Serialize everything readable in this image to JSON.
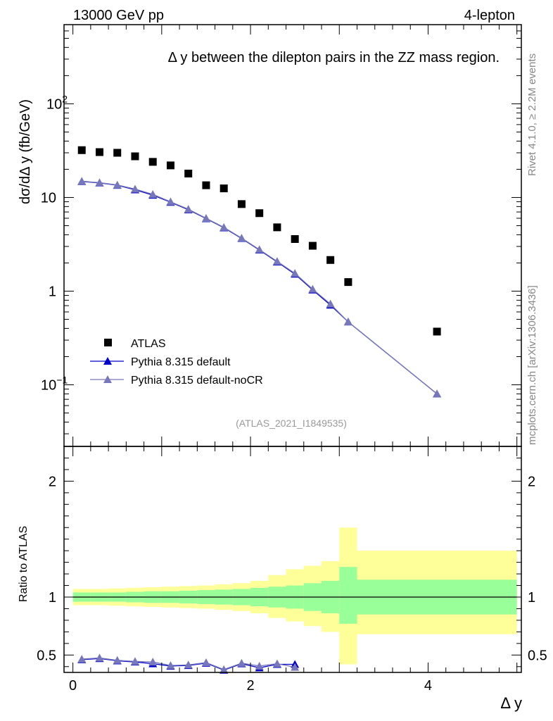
{
  "header": {
    "left": "13000 GeV pp",
    "right": "4-lepton"
  },
  "side_labels": {
    "rivet": "Rivet 4.1.0, ≥ 2.2M events",
    "mcplots": "mcplots.cern.ch [arXiv:1306.3436]"
  },
  "chart_data": [
    {
      "type": "scatter",
      "title": "Δ y between the dilepton pairs in the ZZ mass region.",
      "ylabel": "dσ/dΔ y (fb/GeV)",
      "xlabel": "",
      "yscale": "log",
      "xlim": [
        -0.1,
        5.05
      ],
      "ylim": [
        0.022,
        700
      ],
      "yticks": [
        {
          "value": 0.1,
          "base": "10",
          "exp": "−1"
        },
        {
          "value": 1,
          "base": "1",
          "exp": ""
        },
        {
          "value": 10,
          "base": "10",
          "exp": ""
        },
        {
          "value": 100,
          "base": "10",
          "exp": "2"
        }
      ],
      "watermark": "(ATLAS_2021_I1849535)",
      "legend": {
        "placement": "bottom-left",
        "entries": [
          "ATLAS",
          "Pythia 8.315 default",
          "Pythia 8.315 default-noCR"
        ]
      },
      "series": [
        {
          "name": "ATLAS",
          "color": "#000000",
          "marker": "square",
          "x": [
            0.1,
            0.3,
            0.5,
            0.7,
            0.9,
            1.1,
            1.3,
            1.5,
            1.7,
            1.9,
            2.1,
            2.3,
            2.5,
            2.7,
            2.9,
            3.1,
            4.1
          ],
          "values": [
            32.0,
            30.5,
            30.0,
            27.5,
            24.0,
            22.0,
            18.0,
            13.5,
            12.5,
            8.5,
            6.8,
            4.8,
            3.6,
            3.05,
            2.15,
            1.25,
            0.37
          ]
        },
        {
          "name": "Pythia 8.315 default",
          "color": "#0000cc",
          "marker": "triangle",
          "x": [
            0.1,
            0.3,
            0.5,
            0.7,
            0.9,
            1.1,
            1.3,
            1.5,
            1.7,
            1.9,
            2.1,
            2.3,
            2.5,
            2.7,
            2.9,
            3.1,
            4.1
          ],
          "values": [
            14.8,
            14.3,
            13.5,
            12.1,
            10.6,
            8.9,
            7.4,
            5.95,
            4.75,
            3.65,
            2.75,
            2.05,
            1.52,
            1.03,
            0.71,
            0.47,
            0.08
          ]
        },
        {
          "name": "Pythia 8.315 default-noCR",
          "color": "#7777bb",
          "marker": "triangle",
          "x": [
            0.1,
            0.3,
            0.5,
            0.7,
            0.9,
            1.1,
            1.3,
            1.5,
            1.7,
            1.9,
            2.1,
            2.3,
            2.5,
            2.7,
            2.9,
            3.1,
            4.1
          ],
          "values": [
            14.9,
            14.4,
            13.6,
            12.3,
            10.8,
            9.0,
            7.5,
            6.0,
            4.8,
            3.68,
            2.78,
            2.08,
            1.55,
            1.05,
            0.73,
            0.47,
            0.08
          ]
        }
      ]
    },
    {
      "type": "line",
      "title": "",
      "ylabel": "Ratio to ATLAS",
      "xlabel": "Δ y",
      "ylim": [
        0.35,
        2.3
      ],
      "xlim": [
        -0.1,
        5.05
      ],
      "yticks": [
        "0.5",
        "1",
        "2"
      ],
      "xticks": [
        "0",
        "2",
        "4"
      ],
      "bands": {
        "edges": [
          0.0,
          0.2,
          0.4,
          0.6,
          0.8,
          1.0,
          1.2,
          1.4,
          1.6,
          1.8,
          2.0,
          2.2,
          2.4,
          2.6,
          2.8,
          3.0,
          3.2,
          5.0
        ],
        "stat_low": [
          0.96,
          0.96,
          0.96,
          0.955,
          0.95,
          0.95,
          0.945,
          0.94,
          0.935,
          0.93,
          0.92,
          0.91,
          0.9,
          0.88,
          0.86,
          0.77,
          0.85
        ],
        "stat_high": [
          1.04,
          1.04,
          1.04,
          1.045,
          1.05,
          1.05,
          1.055,
          1.06,
          1.065,
          1.07,
          1.08,
          1.09,
          1.1,
          1.12,
          1.14,
          1.26,
          1.15
        ],
        "total_low": [
          0.93,
          0.93,
          0.925,
          0.92,
          0.915,
          0.91,
          0.905,
          0.9,
          0.89,
          0.88,
          0.86,
          0.82,
          0.79,
          0.75,
          0.7,
          0.42,
          0.68
        ],
        "total_high": [
          1.07,
          1.07,
          1.075,
          1.08,
          1.085,
          1.09,
          1.095,
          1.1,
          1.11,
          1.12,
          1.14,
          1.19,
          1.24,
          1.27,
          1.31,
          1.6,
          1.4
        ]
      },
      "series": [
        {
          "name": "Pythia 8.315 default",
          "color": "#0000cc",
          "x": [
            0.1,
            0.3,
            0.5,
            0.7,
            0.9,
            1.1,
            1.3,
            1.5,
            1.7,
            1.9,
            2.1,
            2.3,
            2.5
          ],
          "values": [
            0.46,
            0.47,
            0.45,
            0.44,
            0.425,
            0.405,
            0.41,
            0.43,
            0.37,
            0.425,
            0.39,
            0.42,
            0.42
          ]
        },
        {
          "name": "Pythia 8.315 default-noCR",
          "color": "#7777bb",
          "x": [
            0.1,
            0.3,
            0.5,
            0.7,
            0.9,
            1.1,
            1.3,
            1.5,
            1.7,
            1.9,
            2.1,
            2.3,
            2.5
          ],
          "values": [
            0.465,
            0.475,
            0.455,
            0.445,
            0.44,
            0.41,
            0.415,
            0.435,
            0.375,
            0.43,
            0.405,
            0.425,
            0.395
          ]
        }
      ]
    }
  ]
}
